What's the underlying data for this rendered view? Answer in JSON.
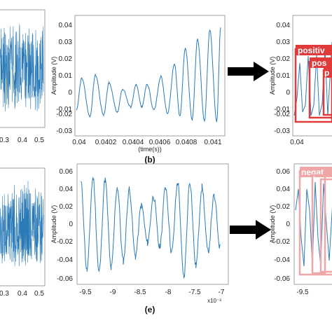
{
  "figure": {
    "panel_b_letter": "(b)",
    "panel_e_letter": "(e)",
    "b_xlabel": "(time(s))",
    "b_ylabel": "Amplitude (V)",
    "e_ylabel": "Amplitude (V)",
    "c_ylabel": "Amplitude (V)",
    "f_ylabel": "Amplitude (V)",
    "e_multiplier": "x10⁻³",
    "det_pos_1": "positiv",
    "det_pos_2": "pos",
    "det_pos_3": "p",
    "det_neg_1": "negat"
  },
  "colors": {
    "signal": "#2a7ab8",
    "positive_box": "#e03a3a",
    "negative_box": "#f0a6a6",
    "arrow": "#000000"
  },
  "chart_data": [
    {
      "type": "line",
      "panel": "a",
      "description_visible": "noisy signal (cropped)",
      "xticks": [
        "0.3",
        "0.4",
        "0.5"
      ],
      "xlim": [
        0.22,
        0.51
      ]
    },
    {
      "type": "line",
      "panel": "b",
      "xlabel": "(time(s))",
      "ylabel": "Amplitude (V)",
      "xlim": [
        0.04,
        0.0411
      ],
      "ylim": [
        -0.032,
        0.043
      ],
      "xticks": [
        "0.04",
        "0.0402",
        "0.0404",
        "0.0406",
        "0.0408",
        "0.041"
      ],
      "yticks": [
        "0.04",
        "0.03",
        "0.02",
        "0.01",
        "0",
        "-0.01",
        "-0.02",
        "-0.03"
      ],
      "peaks": [
        {
          "t": 0.04005,
          "v": 0.004
        },
        {
          "t": 0.04015,
          "v": 0.006
        },
        {
          "t": 0.04025,
          "v": 0.001
        },
        {
          "t": 0.04035,
          "v": -0.003
        },
        {
          "t": 0.04045,
          "v": 0.0
        },
        {
          "t": 0.04053,
          "v": 0.0
        },
        {
          "t": 0.04063,
          "v": 0.005
        },
        {
          "t": 0.04073,
          "v": 0.013
        },
        {
          "t": 0.04081,
          "v": 0.023
        },
        {
          "t": 0.0409,
          "v": 0.028
        },
        {
          "t": 0.04099,
          "v": 0.034
        },
        {
          "t": 0.04107,
          "v": 0.036
        }
      ],
      "troughs": [
        {
          "t": 0.04001,
          "v": -0.016
        },
        {
          "t": 0.04011,
          "v": -0.02
        },
        {
          "t": 0.04021,
          "v": -0.019
        },
        {
          "t": 0.04031,
          "v": -0.017
        },
        {
          "t": 0.04041,
          "v": -0.014
        },
        {
          "t": 0.04049,
          "v": -0.014
        },
        {
          "t": 0.04058,
          "v": -0.016
        },
        {
          "t": 0.04068,
          "v": -0.018
        },
        {
          "t": 0.04077,
          "v": -0.02
        },
        {
          "t": 0.04086,
          "v": -0.022
        },
        {
          "t": 0.04095,
          "v": -0.023
        },
        {
          "t": 0.04104,
          "v": -0.023
        }
      ]
    },
    {
      "type": "line",
      "panel": "c",
      "ylabel": "Amplitude (V)",
      "xticks": [
        "0.04"
      ],
      "yticks": [
        "0.04",
        "0.03",
        "0.02",
        "0.01",
        "0",
        "-0.01",
        "-0.02",
        "-0.03"
      ],
      "detections": [
        "positiv",
        "pos",
        "p"
      ]
    },
    {
      "type": "line",
      "panel": "d",
      "description_visible": "noisy signal (cropped)",
      "xticks": [
        "0.3",
        "0.4",
        "0.5"
      ]
    },
    {
      "type": "line",
      "panel": "e",
      "ylabel": "Amplitude (V)",
      "xlim": [
        -9.65,
        -6.9
      ],
      "xlim_multiplier": "x10⁻³",
      "ylim": [
        -0.065,
        0.065
      ],
      "xticks": [
        "-9.5",
        "-9",
        "-8.5",
        "-8",
        "-7.5",
        "-7"
      ],
      "yticks": [
        "0.06",
        "0.04",
        "0.02",
        "0",
        "-0.02",
        "-0.04",
        "-0.06"
      ],
      "peaks": [
        {
          "t": -9.58,
          "v": 0.045
        },
        {
          "t": -9.36,
          "v": 0.05
        },
        {
          "t": -9.14,
          "v": 0.048
        },
        {
          "t": -8.92,
          "v": 0.04
        },
        {
          "t": -8.7,
          "v": 0.038
        },
        {
          "t": -8.48,
          "v": 0.02
        },
        {
          "t": -8.26,
          "v": 0.03
        },
        {
          "t": -8.04,
          "v": 0.04
        },
        {
          "t": -7.82,
          "v": 0.045
        },
        {
          "t": -7.6,
          "v": 0.046
        },
        {
          "t": -7.38,
          "v": 0.04
        },
        {
          "t": -7.16,
          "v": 0.03
        }
      ],
      "troughs": [
        {
          "t": -9.47,
          "v": -0.05
        },
        {
          "t": -9.25,
          "v": -0.052
        },
        {
          "t": -9.03,
          "v": -0.048
        },
        {
          "t": -8.81,
          "v": -0.04
        },
        {
          "t": -8.59,
          "v": -0.035
        },
        {
          "t": -8.37,
          "v": -0.02
        },
        {
          "t": -8.15,
          "v": -0.025
        },
        {
          "t": -7.93,
          "v": -0.03
        },
        {
          "t": -7.71,
          "v": -0.058
        },
        {
          "t": -7.49,
          "v": -0.045
        },
        {
          "t": -7.27,
          "v": -0.03
        },
        {
          "t": -7.05,
          "v": -0.025
        }
      ]
    },
    {
      "type": "line",
      "panel": "f",
      "ylabel": "Amplitude (V)",
      "xticks": [
        "-9.5"
      ],
      "yticks": [
        "0.06",
        "0.04",
        "0.02",
        "0",
        "-0.02",
        "-0.04",
        "-0.06"
      ],
      "detections": [
        "negat"
      ]
    }
  ]
}
